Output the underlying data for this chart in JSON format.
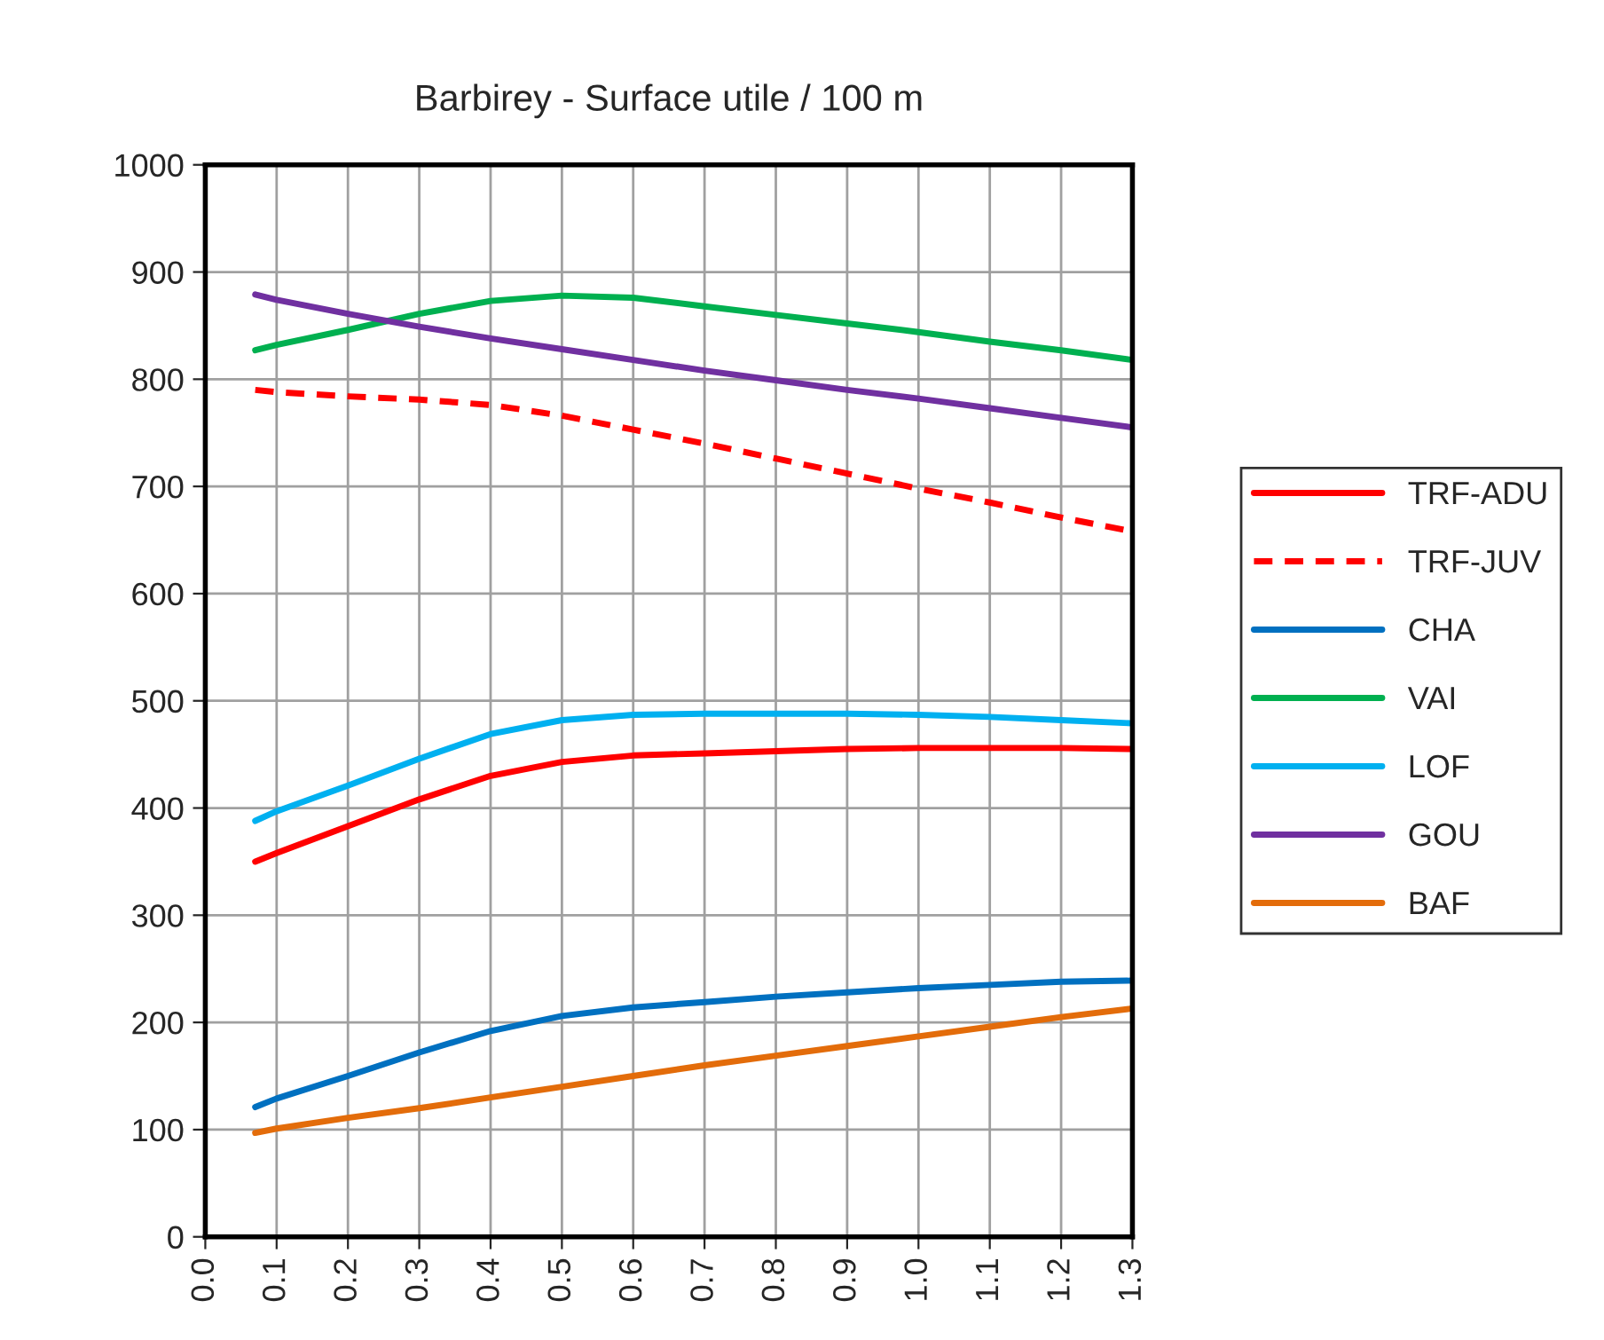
{
  "chart_data": {
    "type": "line",
    "title": "Barbirey - Surface utile / 100 m",
    "x": [
      0.07,
      0.1,
      0.2,
      0.3,
      0.4,
      0.5,
      0.6,
      0.7,
      0.8,
      0.9,
      1.0,
      1.1,
      1.2,
      1.3
    ],
    "series": [
      {
        "name": "TRF-ADU",
        "color": "#ff0000",
        "values": [
          350,
          358,
          383,
          408,
          430,
          443,
          449,
          451,
          453,
          455,
          456,
          456,
          456,
          455
        ]
      },
      {
        "name": "TRF-JUV",
        "color": "#ff0000",
        "line_style": "dashed",
        "values": [
          790,
          788,
          784,
          781,
          776,
          766,
          753,
          740,
          726,
          712,
          698,
          685,
          671,
          658
        ]
      },
      {
        "name": "CHA",
        "color": "#0070c0",
        "values": [
          121,
          129,
          150,
          172,
          192,
          206,
          214,
          219,
          224,
          228,
          232,
          235,
          238,
          239
        ]
      },
      {
        "name": "VAI",
        "color": "#00b050",
        "values": [
          827,
          832,
          846,
          861,
          873,
          878,
          876,
          868,
          860,
          852,
          844,
          835,
          827,
          818
        ]
      },
      {
        "name": "LOF",
        "color": "#00b0f0",
        "values": [
          388,
          397,
          421,
          446,
          469,
          482,
          487,
          488,
          488,
          488,
          487,
          485,
          482,
          479
        ]
      },
      {
        "name": "GOU",
        "color": "#7030a0",
        "values": [
          879,
          874,
          861,
          849,
          838,
          828,
          818,
          808,
          799,
          790,
          782,
          773,
          764,
          755
        ]
      },
      {
        "name": "BAF",
        "color": "#e36c0a",
        "values": [
          97,
          101,
          111,
          120,
          130,
          140,
          150,
          160,
          169,
          178,
          187,
          196,
          205,
          213
        ]
      }
    ],
    "xlim": [
      0.0,
      1.3
    ],
    "xticks": [
      {
        "value": 0.0,
        "label": "0.0"
      },
      {
        "value": 0.1,
        "label": "0.1"
      },
      {
        "value": 0.2,
        "label": "0.2"
      },
      {
        "value": 0.3,
        "label": "0.3"
      },
      {
        "value": 0.4,
        "label": "0.4"
      },
      {
        "value": 0.5,
        "label": "0.5"
      },
      {
        "value": 0.6,
        "label": "0.6"
      },
      {
        "value": 0.7,
        "label": "0.7"
      },
      {
        "value": 0.8,
        "label": "0.8"
      },
      {
        "value": 0.9,
        "label": "0.9"
      },
      {
        "value": 1.0,
        "label": "1.0"
      },
      {
        "value": 1.1,
        "label": "1.1"
      },
      {
        "value": 1.2,
        "label": "1.2"
      },
      {
        "value": 1.3,
        "label": "1.3"
      }
    ],
    "ylim": [
      0,
      1000
    ],
    "yticks": [
      0,
      100,
      200,
      300,
      400,
      500,
      600,
      700,
      800,
      900,
      1000
    ],
    "grid": true,
    "legend": "right",
    "line_style": "solid"
  }
}
